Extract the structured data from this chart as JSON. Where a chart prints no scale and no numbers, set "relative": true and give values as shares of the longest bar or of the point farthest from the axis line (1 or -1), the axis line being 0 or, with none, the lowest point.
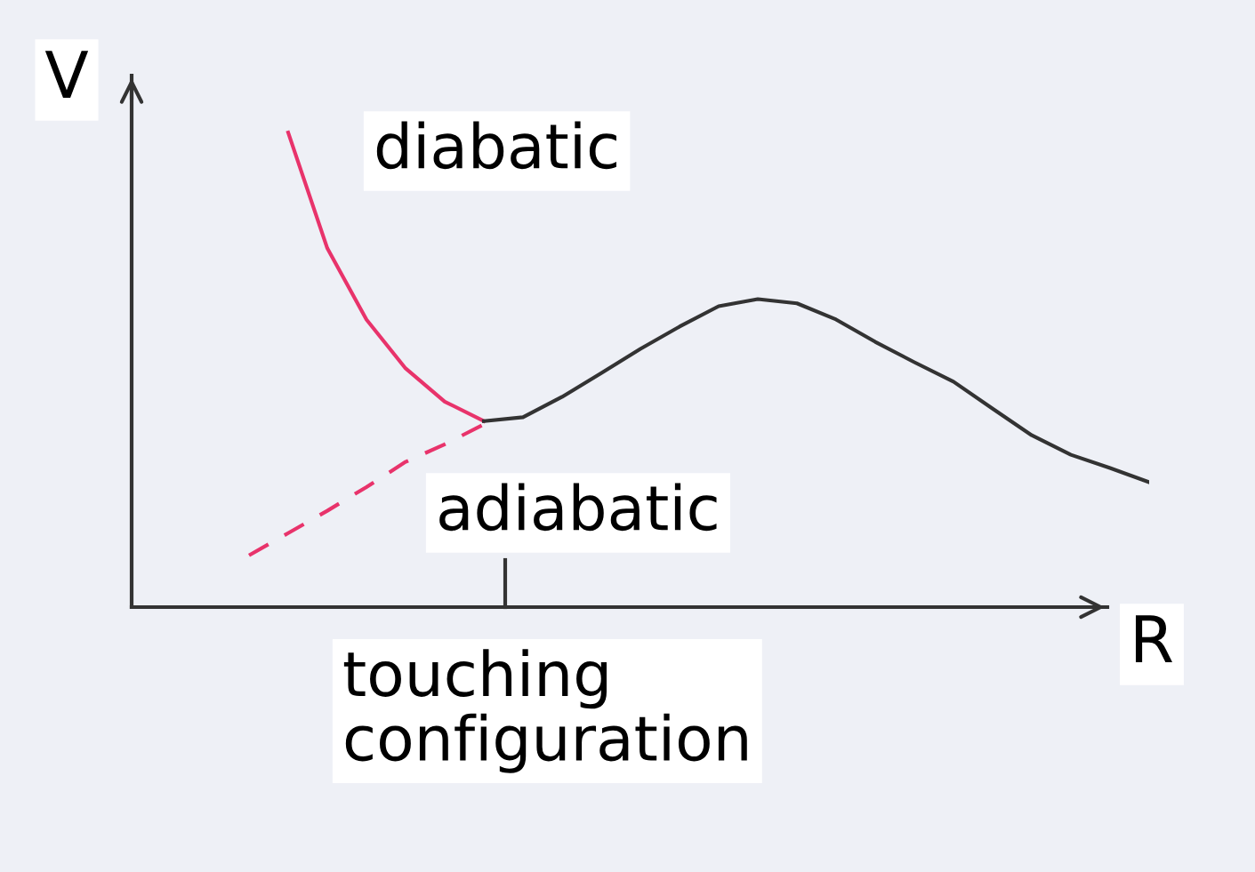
{
  "chart_data": {
    "type": "line",
    "relative": true,
    "xlabel": "R",
    "ylabel": "V",
    "categories": [
      null,
      null,
      null,
      null,
      null,
      null,
      null,
      null,
      null,
      null,
      null,
      null,
      null,
      null,
      null,
      null,
      null,
      null,
      null,
      null,
      null,
      null,
      null,
      null,
      null,
      null,
      null
    ],
    "series": [
      {
        "color": "#e8336b",
        "line_style": "solid",
        "values": [
          null,
          null,
          null,
          null,
          1.0,
          0.756,
          0.606,
          0.503,
          0.433,
          0.392,
          null,
          null,
          null,
          null,
          null,
          null,
          null,
          null,
          null,
          null,
          null,
          null,
          null,
          null,
          null,
          null,
          null
        ]
      },
      {
        "color": "#e8336b",
        "line_style": "dashed",
        "values": [
          null,
          null,
          null,
          0.109,
          0.156,
          0.203,
          0.253,
          0.306,
          0.343,
          0.385,
          null,
          null,
          null,
          null,
          null,
          null,
          null,
          null,
          null,
          null,
          null,
          null,
          null,
          null,
          null,
          null,
          null
        ]
      },
      {
        "color": "#333333",
        "line_style": "solid",
        "values": [
          null,
          null,
          null,
          null,
          null,
          null,
          null,
          null,
          null,
          0.392,
          0.4,
          0.443,
          0.493,
          0.544,
          0.591,
          0.634,
          0.649,
          0.64,
          0.606,
          0.559,
          0.516,
          0.475,
          0.418,
          0.362,
          0.321,
          0.293,
          0.263
        ]
      }
    ],
    "annotations": [
      "diabatic",
      "adiabatic",
      "touching configuration"
    ],
    "marker": "none",
    "legend": false
  }
}
